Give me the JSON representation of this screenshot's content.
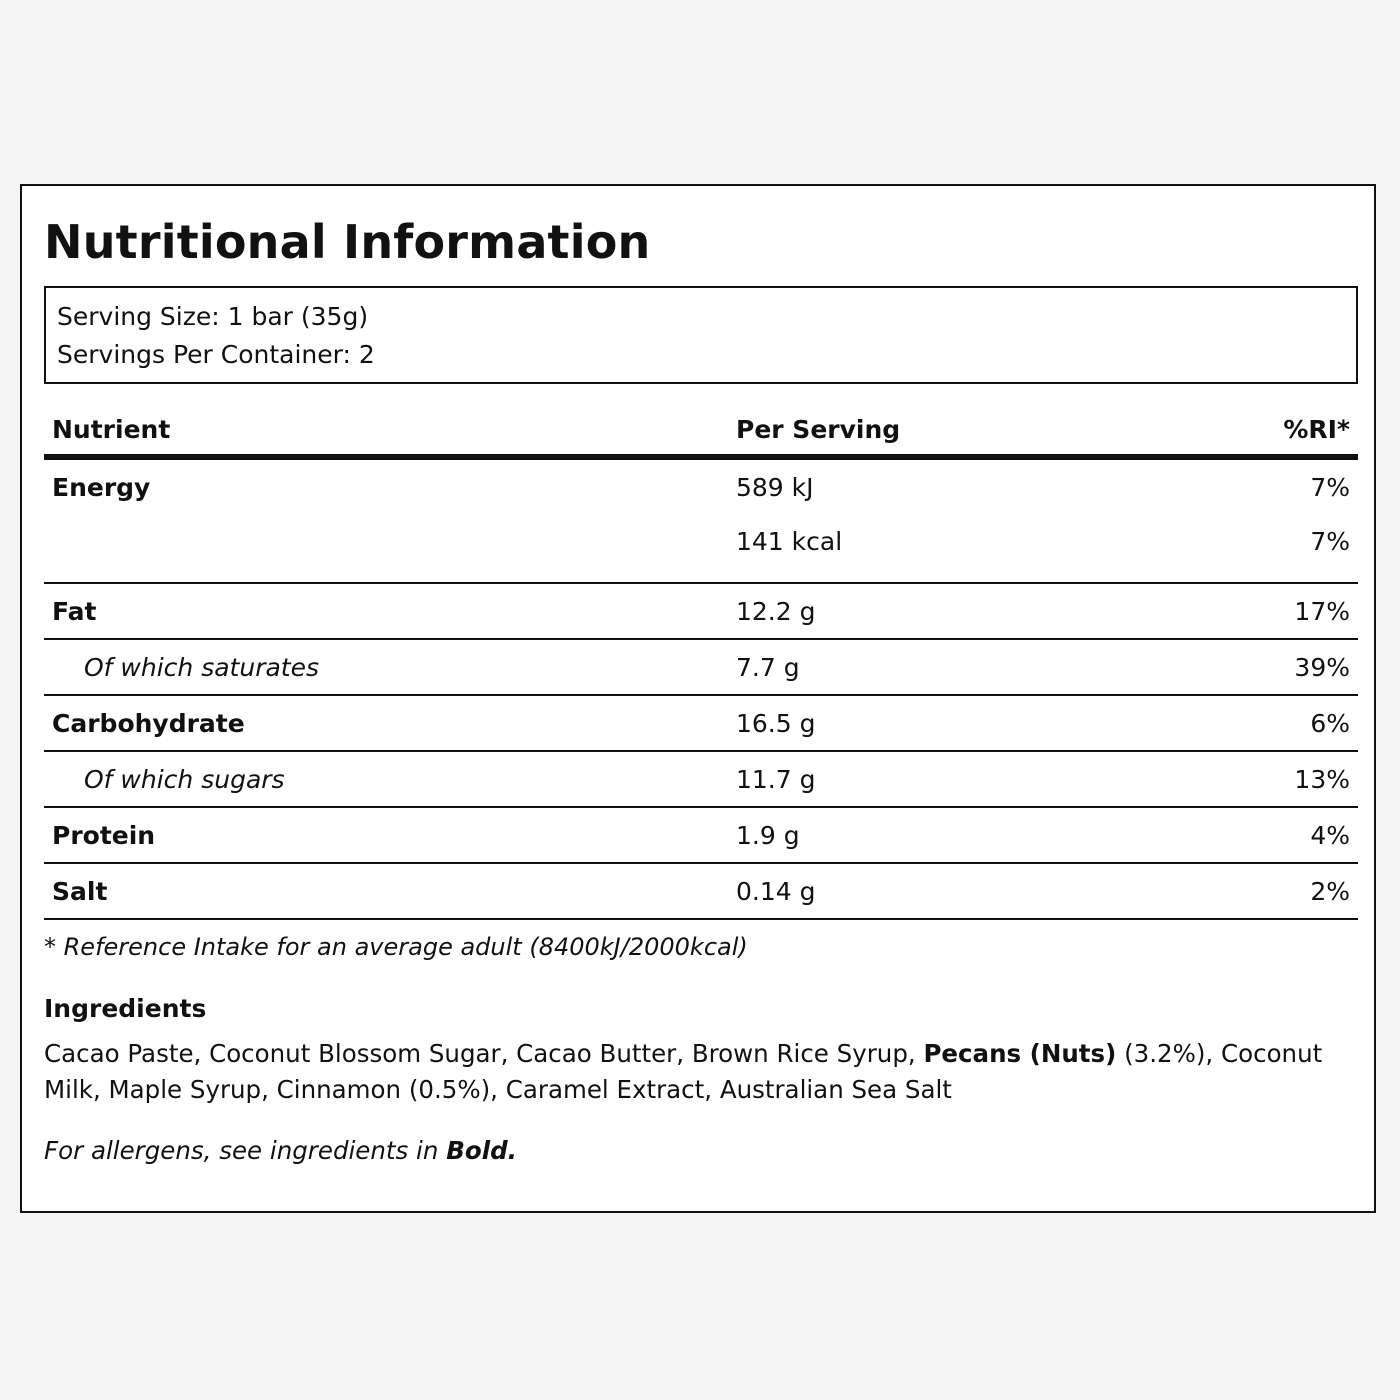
{
  "title": "Nutritional Information",
  "serving": {
    "size": "Serving Size: 1 bar (35g)",
    "per_container": "Servings Per Container: 2"
  },
  "table": {
    "headers": {
      "nutrient": "Nutrient",
      "per_serving": "Per Serving",
      "ri": "%RI*"
    },
    "energy": {
      "name": "Energy",
      "kj": "589 kJ",
      "kj_ri": "7%",
      "kcal": "141 kcal",
      "kcal_ri": "7%"
    },
    "rows": [
      {
        "name": "Fat",
        "value": "12.2 g",
        "ri": "17%",
        "sub": false
      },
      {
        "name": "Of which saturates",
        "value": "7.7 g",
        "ri": "39%",
        "sub": true
      },
      {
        "name": "Carbohydrate",
        "value": "16.5 g",
        "ri": "6%",
        "sub": false
      },
      {
        "name": "Of which sugars",
        "value": "11.7 g",
        "ri": "13%",
        "sub": true
      },
      {
        "name": "Protein",
        "value": "1.9 g",
        "ri": "4%",
        "sub": false
      },
      {
        "name": "Salt",
        "value": "0.14 g",
        "ri": "2%",
        "sub": false
      }
    ]
  },
  "footnote": "* Reference Intake for an average adult (8400kJ/2000kcal)",
  "ingredients": {
    "heading": "Ingredients",
    "before_allergen": "Cacao Paste, Coconut Blossom Sugar, Cacao Butter, Brown Rice Syrup, ",
    "allergen": "Pecans (Nuts)",
    "after_allergen": " (3.2%), Coconut Milk, Maple Syrup, Cinnamon (0.5%), Caramel Extract, Australian Sea Salt"
  },
  "allergen_note": {
    "text": "For allergens, see ingredients in ",
    "bold": "Bold."
  }
}
